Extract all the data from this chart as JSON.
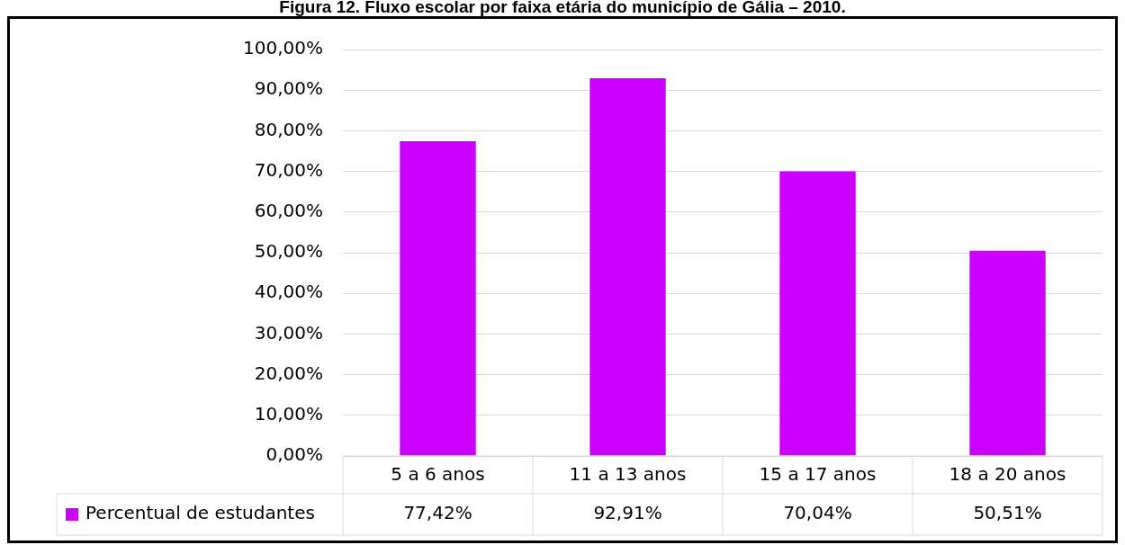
{
  "chart_data": {
    "type": "bar",
    "title": "Figura 12. Fluxo escolar por faixa etária do município de Gália – 2010.",
    "categories": [
      "5 a 6 anos",
      "11 a 13 anos",
      "15 a 17 anos",
      "18 a 20 anos"
    ],
    "series": [
      {
        "name": "Percentual de estudantes",
        "color": "#cc00ff",
        "values": [
          77.42,
          92.91,
          70.04,
          50.51
        ],
        "value_labels": [
          "77,42%",
          "92,91%",
          "70,04%",
          "50,51%"
        ]
      }
    ],
    "ylim": [
      0,
      100
    ],
    "yticks": [
      {
        "value": 0,
        "label": "0,00%"
      },
      {
        "value": 10,
        "label": "10,00%"
      },
      {
        "value": 20,
        "label": "20,00%"
      },
      {
        "value": 30,
        "label": "30,00%"
      },
      {
        "value": 40,
        "label": "40,00%"
      },
      {
        "value": 50,
        "label": "50,00%"
      },
      {
        "value": 60,
        "label": "60,00%"
      },
      {
        "value": 70,
        "label": "70,00%"
      },
      {
        "value": 80,
        "label": "80,00%"
      },
      {
        "value": 90,
        "label": "90,00%"
      },
      {
        "value": 100,
        "label": "100,00%"
      }
    ],
    "grid": "y",
    "legend": "bottom"
  }
}
